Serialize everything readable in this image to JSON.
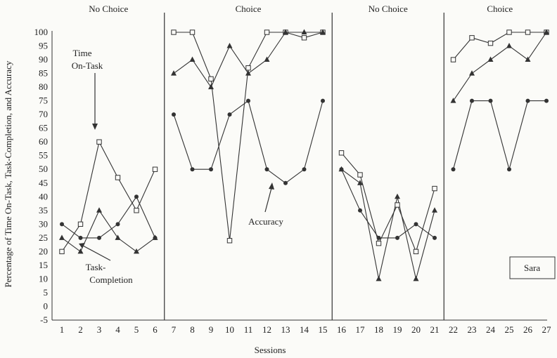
{
  "chart_data": {
    "type": "line",
    "xlabel": "Sessions",
    "ylabel": "Percentage of Time On-Task, Task-Completion, and Accuracy",
    "ylim": [
      -5,
      100
    ],
    "yticks": [
      100,
      95,
      90,
      85,
      80,
      75,
      70,
      65,
      60,
      55,
      50,
      45,
      40,
      35,
      30,
      25,
      20,
      15,
      10,
      5,
      0,
      -5
    ],
    "phases": [
      {
        "label": "No Choice",
        "sessions": [
          1,
          6
        ]
      },
      {
        "label": "Choice",
        "sessions": [
          7,
          15
        ]
      },
      {
        "label": "No Choice",
        "sessions": [
          16,
          21
        ]
      },
      {
        "label": "Choice",
        "sessions": [
          22,
          27
        ]
      }
    ],
    "annotations": {
      "time_on_task": [
        "Time",
        "On-Task"
      ],
      "task_completion": [
        "Task-",
        "Completion"
      ],
      "accuracy": "Accuracy"
    },
    "participant": "Sara",
    "series": [
      {
        "marker": "square",
        "segments": [
          [
            [
              1,
              20
            ],
            [
              2,
              30
            ],
            [
              3,
              60
            ],
            [
              4,
              47
            ],
            [
              5,
              35
            ],
            [
              6,
              50
            ]
          ],
          [
            [
              7,
              100
            ],
            [
              8,
              100
            ],
            [
              9,
              83
            ],
            [
              10,
              24
            ],
            [
              11,
              87
            ],
            [
              12,
              100
            ],
            [
              13,
              100
            ],
            [
              14,
              98
            ],
            [
              15,
              100
            ]
          ],
          [
            [
              16,
              56
            ],
            [
              17,
              48
            ],
            [
              18,
              23
            ],
            [
              19,
              37
            ],
            [
              20,
              20
            ],
            [
              21,
              43
            ]
          ],
          [
            [
              22,
              90
            ],
            [
              23,
              98
            ],
            [
              24,
              96
            ],
            [
              25,
              100
            ],
            [
              26,
              100
            ],
            [
              27,
              100
            ]
          ]
        ]
      },
      {
        "marker": "triangle",
        "segments": [
          [
            [
              1,
              25
            ],
            [
              2,
              20
            ],
            [
              3,
              35
            ],
            [
              4,
              25
            ],
            [
              5,
              20
            ],
            [
              6,
              25
            ]
          ],
          [
            [
              7,
              85
            ],
            [
              8,
              90
            ],
            [
              9,
              80
            ],
            [
              10,
              95
            ],
            [
              11,
              85
            ],
            [
              12,
              90
            ],
            [
              13,
              100
            ],
            [
              14,
              100
            ],
            [
              15,
              100
            ]
          ],
          [
            [
              16,
              50
            ],
            [
              17,
              45
            ],
            [
              18,
              10
            ],
            [
              19,
              40
            ],
            [
              20,
              10
            ],
            [
              21,
              35
            ]
          ],
          [
            [
              22,
              75
            ],
            [
              23,
              85
            ],
            [
              24,
              90
            ],
            [
              25,
              95
            ],
            [
              26,
              90
            ],
            [
              27,
              100
            ]
          ]
        ]
      },
      {
        "marker": "circle",
        "segments": [
          [
            [
              1,
              30
            ],
            [
              2,
              25
            ],
            [
              3,
              25
            ],
            [
              4,
              30
            ],
            [
              5,
              40
            ],
            [
              6,
              25
            ]
          ],
          [
            [
              7,
              70
            ],
            [
              8,
              50
            ],
            [
              9,
              50
            ],
            [
              10,
              70
            ],
            [
              11,
              75
            ],
            [
              12,
              50
            ],
            [
              13,
              45
            ],
            [
              14,
              50
            ],
            [
              15,
              75
            ]
          ],
          [
            [
              16,
              50
            ],
            [
              17,
              35
            ],
            [
              18,
              25
            ],
            [
              19,
              25
            ],
            [
              20,
              30
            ],
            [
              21,
              25
            ]
          ],
          [
            [
              22,
              50
            ],
            [
              23,
              75
            ],
            [
              24,
              75
            ],
            [
              25,
              50
            ],
            [
              26,
              75
            ],
            [
              27,
              75
            ]
          ]
        ]
      }
    ]
  }
}
